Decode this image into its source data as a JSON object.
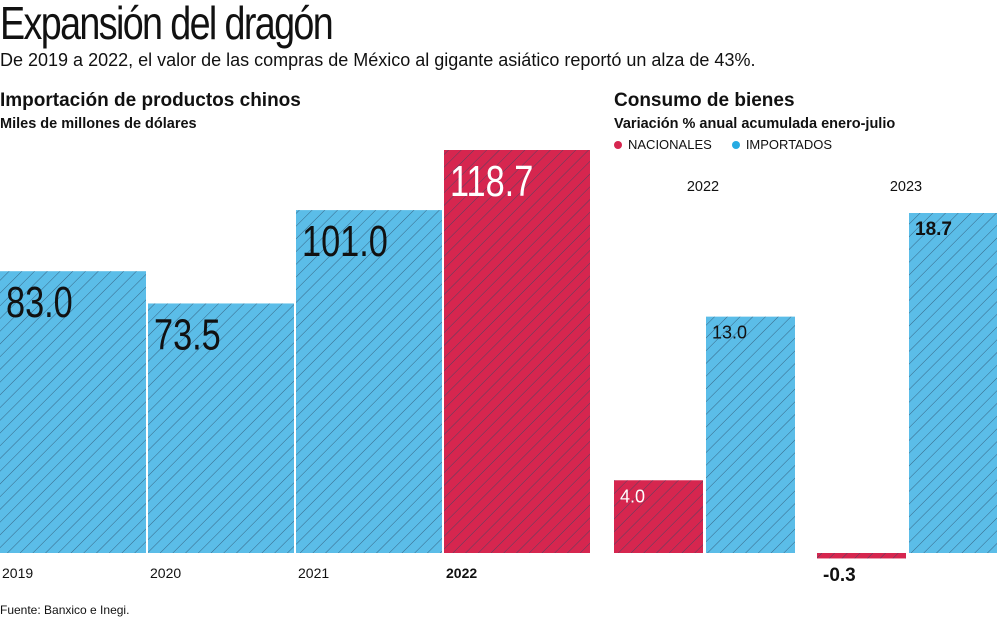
{
  "header": {
    "title": "Expansión del dragón",
    "subtitle": "De 2019 a 2022, el valor de las compras de México al gigante asiático reportó un alza de 43%."
  },
  "left_chart": {
    "title": "Importación de productos chinos",
    "subtitle": "Miles de millones de dólares"
  },
  "right_chart": {
    "title": "Consumo de bienes",
    "subtitle": "Variación % anual acumulada enero-julio",
    "legend": [
      {
        "label": "NACIONALES",
        "color": "#d6264f"
      },
      {
        "label": "IMPORTADOS",
        "color": "#27abe2"
      }
    ]
  },
  "footer": {
    "source": "Fuente: Banxico e Inegi."
  },
  "colors": {
    "blue": "#5bbde8",
    "red": "#d6264f",
    "hatch": "#2a4a66"
  },
  "chart_data": [
    {
      "type": "bar",
      "title": "Importación de productos chinos",
      "ylabel": "Miles de millones de dólares",
      "categories": [
        "2019",
        "2020",
        "2021",
        "2022"
      ],
      "values": [
        83.0,
        73.5,
        101.0,
        118.7
      ],
      "labels": [
        "83.0",
        "73.5",
        "101.0",
        "118.7"
      ],
      "highlight": "2022",
      "ylim": [
        0,
        118.7
      ]
    },
    {
      "type": "bar",
      "title": "Consumo de bienes",
      "ylabel": "Variación % anual acumulada enero-julio",
      "categories": [
        "2022",
        "2023"
      ],
      "series": [
        {
          "name": "NACIONALES",
          "values": [
            4.0,
            -0.3
          ],
          "labels": [
            "4.0",
            "-0.3"
          ]
        },
        {
          "name": "IMPORTADOS",
          "values": [
            13.0,
            18.7
          ],
          "labels": [
            "13.0",
            "18.7"
          ]
        }
      ],
      "ylim": [
        -0.3,
        18.7
      ]
    }
  ]
}
